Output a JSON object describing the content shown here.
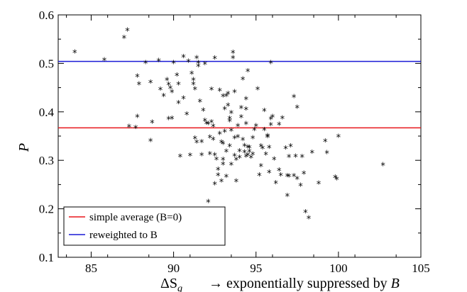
{
  "chart_data": {
    "type": "scatter",
    "xlabel_main": "ΔS",
    "xlabel_sub": "q",
    "xlabel_note": "→ exponentially suppressed by",
    "xlabel_note_var": "B",
    "ylabel": "P",
    "xlim": [
      83,
      105
    ],
    "ylim": [
      0.1,
      0.6
    ],
    "xticks": [
      85,
      90,
      95,
      100,
      105
    ],
    "yticks": [
      0.1,
      0.2,
      0.3,
      0.4,
      0.5,
      0.6
    ],
    "xtick_labels": [
      "85",
      "90",
      "95",
      "100",
      "105"
    ],
    "ytick_labels": [
      "0.1",
      "0.2",
      "0.3",
      "0.4",
      "0.5",
      "0.6"
    ],
    "marker": "*",
    "lines": [
      {
        "name": "simple average (B=0)",
        "y": 0.367,
        "color": "#e8161b"
      },
      {
        "name": "reweighted to B",
        "y": 0.504,
        "color": "#1a1ad6"
      }
    ],
    "legend_position": "bottom-left",
    "points": [
      [
        84.0,
        0.522
      ],
      [
        85.8,
        0.506
      ],
      [
        87.0,
        0.552
      ],
      [
        87.2,
        0.567
      ],
      [
        87.3,
        0.368
      ],
      [
        87.7,
        0.366
      ],
      [
        87.8,
        0.472
      ],
      [
        87.8,
        0.389
      ],
      [
        87.9,
        0.456
      ],
      [
        88.3,
        0.5
      ],
      [
        88.6,
        0.46
      ],
      [
        88.6,
        0.339
      ],
      [
        88.7,
        0.377
      ],
      [
        89.1,
        0.504
      ],
      [
        89.2,
        0.445
      ],
      [
        89.4,
        0.432
      ],
      [
        89.6,
        0.465
      ],
      [
        89.7,
        0.455
      ],
      [
        89.7,
        0.384
      ],
      [
        89.8,
        0.448
      ],
      [
        89.9,
        0.385
      ],
      [
        89.9,
        0.44
      ],
      [
        90.0,
        0.5
      ],
      [
        90.2,
        0.474
      ],
      [
        90.3,
        0.456
      ],
      [
        90.3,
        0.417
      ],
      [
        90.4,
        0.307
      ],
      [
        90.6,
        0.512
      ],
      [
        90.6,
        0.427
      ],
      [
        90.8,
        0.394
      ],
      [
        90.9,
        0.503
      ],
      [
        91.0,
        0.309
      ],
      [
        91.1,
        0.478
      ],
      [
        91.2,
        0.465
      ],
      [
        91.2,
        0.456
      ],
      [
        91.3,
        0.446
      ],
      [
        91.3,
        0.344
      ],
      [
        91.4,
        0.51
      ],
      [
        91.4,
        0.336
      ],
      [
        91.5,
        0.5
      ],
      [
        91.5,
        0.493
      ],
      [
        91.6,
        0.42
      ],
      [
        91.7,
        0.337
      ],
      [
        91.7,
        0.31
      ],
      [
        91.8,
        0.402
      ],
      [
        91.9,
        0.498
      ],
      [
        91.9,
        0.381
      ],
      [
        92.0,
        0.375
      ],
      [
        92.1,
        0.213
      ],
      [
        92.1,
        0.374
      ],
      [
        92.2,
        0.346
      ],
      [
        92.2,
        0.312
      ],
      [
        92.3,
        0.445
      ],
      [
        92.3,
        0.378
      ],
      [
        92.4,
        0.369
      ],
      [
        92.4,
        0.342
      ],
      [
        92.5,
        0.31
      ],
      [
        92.5,
        0.25
      ],
      [
        92.5,
        0.509
      ],
      [
        92.6,
        0.301
      ],
      [
        92.7,
        0.28
      ],
      [
        92.7,
        0.268
      ],
      [
        92.8,
        0.443
      ],
      [
        92.8,
        0.354
      ],
      [
        92.9,
        0.336
      ],
      [
        92.9,
        0.256
      ],
      [
        93.0,
        0.333
      ],
      [
        93.0,
        0.3
      ],
      [
        93.0,
        0.291
      ],
      [
        93.0,
        0.431
      ],
      [
        93.1,
        0.405
      ],
      [
        93.1,
        0.358
      ],
      [
        93.2,
        0.432
      ],
      [
        93.2,
        0.317
      ],
      [
        93.2,
        0.265
      ],
      [
        93.3,
        0.436
      ],
      [
        93.3,
        0.412
      ],
      [
        93.4,
        0.385
      ],
      [
        93.4,
        0.38
      ],
      [
        93.4,
        0.328
      ],
      [
        93.5,
        0.397
      ],
      [
        93.5,
        0.29
      ],
      [
        93.5,
        0.36
      ],
      [
        93.6,
        0.51
      ],
      [
        93.6,
        0.521
      ],
      [
        93.7,
        0.44
      ],
      [
        93.7,
        0.345
      ],
      [
        93.7,
        0.308
      ],
      [
        93.8,
        0.3
      ],
      [
        93.8,
        0.256
      ],
      [
        93.9,
        0.37
      ],
      [
        93.9,
        0.347
      ],
      [
        94.0,
        0.318
      ],
      [
        94.0,
        0.305
      ],
      [
        94.1,
        0.407
      ],
      [
        94.1,
        0.388
      ],
      [
        94.2,
        0.466
      ],
      [
        94.2,
        0.341
      ],
      [
        94.3,
        0.329
      ],
      [
        94.3,
        0.316
      ],
      [
        94.4,
        0.425
      ],
      [
        94.4,
        0.404
      ],
      [
        94.4,
        0.374
      ],
      [
        94.4,
        0.307
      ],
      [
        94.5,
        0.483
      ],
      [
        94.5,
        0.326
      ],
      [
        94.5,
        0.31
      ],
      [
        94.6,
        0.325
      ],
      [
        94.6,
        0.317
      ],
      [
        94.7,
        0.305
      ],
      [
        94.8,
        0.345
      ],
      [
        94.8,
        0.311
      ],
      [
        94.9,
        0.362
      ],
      [
        95.0,
        0.37
      ],
      [
        95.1,
        0.446
      ],
      [
        95.2,
        0.268
      ],
      [
        95.3,
        0.328
      ],
      [
        95.3,
        0.287
      ],
      [
        95.4,
        0.324
      ],
      [
        95.5,
        0.401
      ],
      [
        95.5,
        0.362
      ],
      [
        95.6,
        0.311
      ],
      [
        95.7,
        0.349
      ],
      [
        95.7,
        0.347
      ],
      [
        95.8,
        0.274
      ],
      [
        95.8,
        0.325
      ],
      [
        95.9,
        0.384
      ],
      [
        95.9,
        0.372
      ],
      [
        95.9,
        0.5
      ],
      [
        96.0,
        0.389
      ],
      [
        96.1,
        0.301
      ],
      [
        96.2,
        0.252
      ],
      [
        96.4,
        0.373
      ],
      [
        96.4,
        0.278
      ],
      [
        96.5,
        0.268
      ],
      [
        96.6,
        0.386
      ],
      [
        96.8,
        0.324
      ],
      [
        96.9,
        0.267
      ],
      [
        96.9,
        0.226
      ],
      [
        97.0,
        0.306
      ],
      [
        97.0,
        0.266
      ],
      [
        97.1,
        0.328
      ],
      [
        97.3,
        0.43
      ],
      [
        97.3,
        0.267
      ],
      [
        97.4,
        0.307
      ],
      [
        97.5,
        0.408
      ],
      [
        97.5,
        0.261
      ],
      [
        97.7,
        0.247
      ],
      [
        97.8,
        0.306
      ],
      [
        97.9,
        0.272
      ],
      [
        98.0,
        0.192
      ],
      [
        98.2,
        0.18
      ],
      [
        98.4,
        0.315
      ],
      [
        98.8,
        0.251
      ],
      [
        99.2,
        0.338
      ],
      [
        99.3,
        0.314
      ],
      [
        99.8,
        0.264
      ],
      [
        99.9,
        0.26
      ],
      [
        100.0,
        0.348
      ],
      [
        102.7,
        0.289
      ]
    ]
  }
}
